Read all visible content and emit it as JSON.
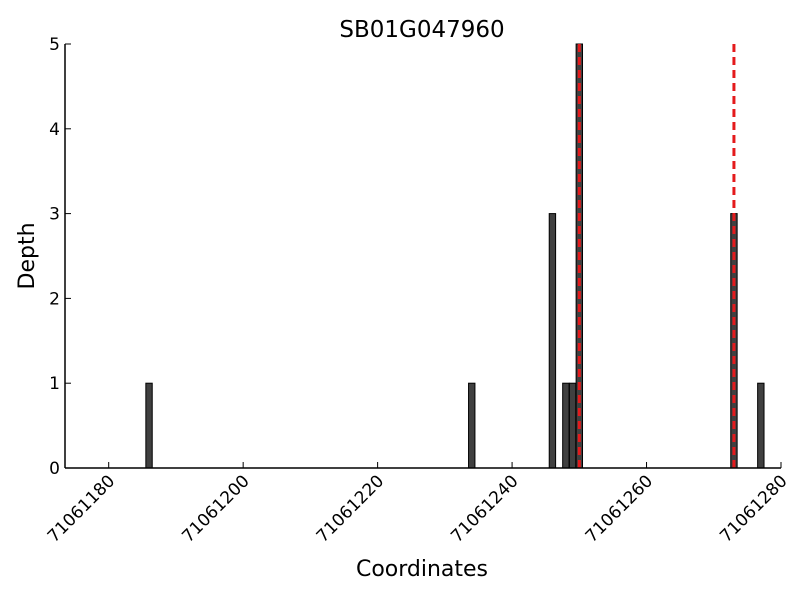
{
  "chart_data": {
    "type": "bar",
    "title": "SB01G047960",
    "xlabel": "Coordinates",
    "ylabel": "Depth",
    "xlim": [
      71061173.5,
      71061280
    ],
    "ylim": [
      0,
      5
    ],
    "x_ticks": [
      71061180,
      71061200,
      71061220,
      71061240,
      71061260,
      71061280
    ],
    "y_ticks": [
      0,
      1,
      2,
      3,
      4,
      5
    ],
    "grid": false,
    "bar_color": "#404040",
    "marker_color": "#e41a1c",
    "bars": [
      {
        "x": 71061186,
        "y": 1
      },
      {
        "x": 71061234,
        "y": 1
      },
      {
        "x": 71061246,
        "y": 3
      },
      {
        "x": 71061248,
        "y": 1
      },
      {
        "x": 71061249,
        "y": 1
      },
      {
        "x": 71061250,
        "y": 5
      },
      {
        "x": 71061273,
        "y": 3
      },
      {
        "x": 71061277,
        "y": 1
      }
    ],
    "markers": [
      71061250,
      71061273
    ]
  }
}
